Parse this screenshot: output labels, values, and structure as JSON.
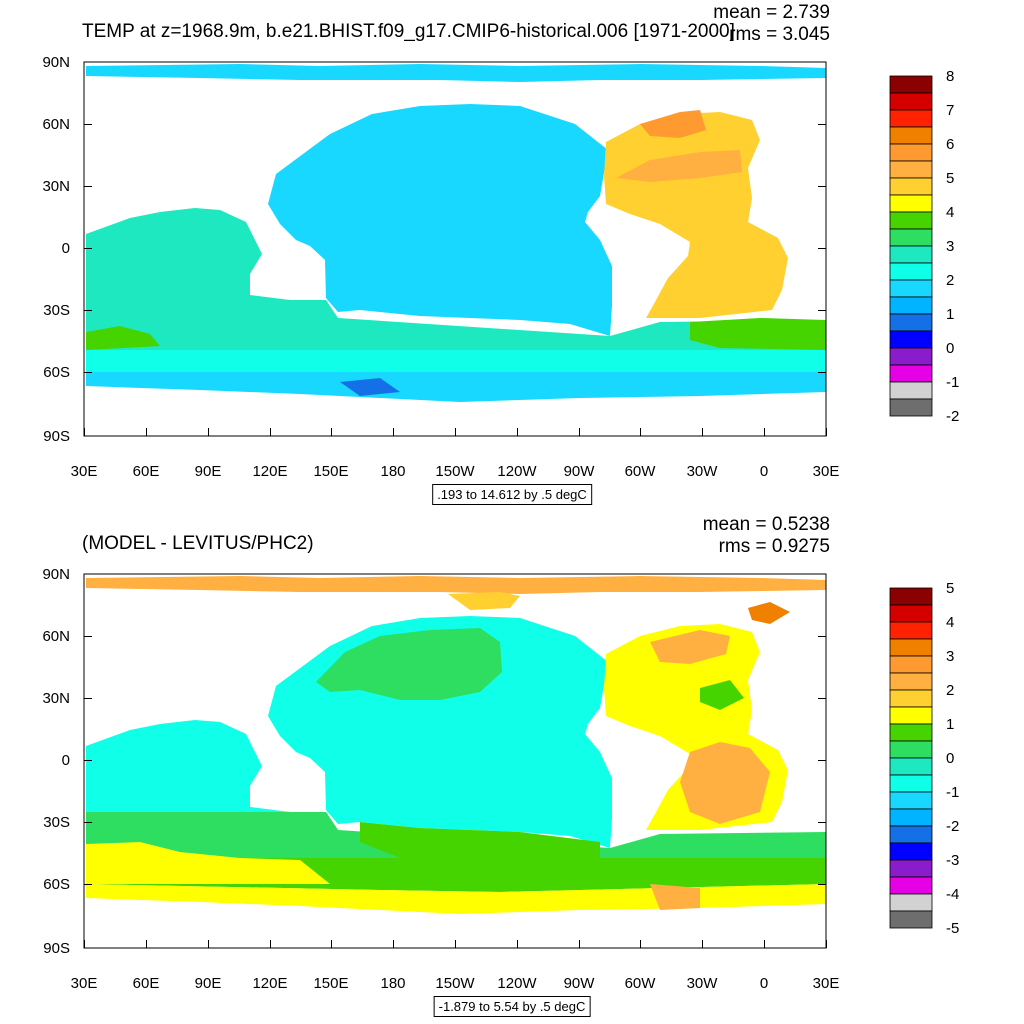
{
  "panels": [
    {
      "title": "TEMP at z=1968.9m, b.e21.BHIST.f09_g17.CMIP6-historical.006 [1971-2000]",
      "mean_text": "mean = 2.739",
      "rms_text": "rms = 3.045",
      "range_text": ".193 to 14.612 by .5 degC",
      "colorbar_labels": [
        "8",
        "7",
        "6",
        "5",
        "4",
        "3",
        "2",
        "1",
        "0",
        "-1",
        "-2"
      ],
      "colors": [
        "#8b0000",
        "#d40000",
        "#ff2200",
        "#f08000",
        "#ff9a30",
        "#ffb040",
        "#ffd030",
        "#ffff00",
        "#46d400",
        "#2dde60",
        "#1ee8c0",
        "#10ffe8",
        "#18d8ff",
        "#00b4ff",
        "#1470e6",
        "#0000ff",
        "#8a1ccc",
        "#e600e6",
        "#d2d2d2",
        "#6e6e6e"
      ]
    },
    {
      "title": "(MODEL - LEVITUS/PHC2)",
      "mean_text": "mean = 0.5238",
      "rms_text": "rms = 0.9275",
      "range_text": "-1.879 to 5.54 by .5 degC",
      "colorbar_labels": [
        "5",
        "4",
        "3",
        "2",
        "1",
        "0",
        "-1",
        "-2",
        "-3",
        "-4",
        "-5"
      ],
      "colors": [
        "#8b0000",
        "#d40000",
        "#ff2200",
        "#f08000",
        "#ff9a30",
        "#ffb040",
        "#ffd030",
        "#ffff00",
        "#46d400",
        "#2dde60",
        "#1ee8c0",
        "#10ffe8",
        "#18d8ff",
        "#00b4ff",
        "#1470e6",
        "#0000ff",
        "#8a1ccc",
        "#e600e6",
        "#d2d2d2",
        "#6e6e6e"
      ]
    }
  ],
  "lat_labels": [
    "90N",
    "60N",
    "30N",
    "0",
    "30S",
    "60S",
    "90S"
  ],
  "lon_labels": [
    "30E",
    "60E",
    "90E",
    "120E",
    "150E",
    "180",
    "150W",
    "120W",
    "90W",
    "60W",
    "30W",
    "0",
    "30E"
  ]
}
